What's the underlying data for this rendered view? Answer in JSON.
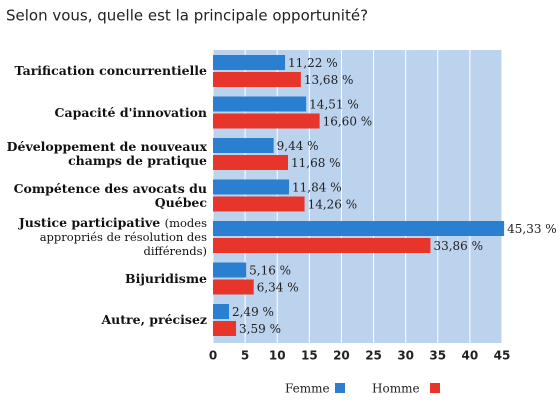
{
  "chart_data": {
    "type": "bar",
    "orientation": "horizontal",
    "title": "Selon vous, quelle est la principale opportunité?",
    "categories": [
      "Tarification concurrentielle",
      "Capacité d'innovation",
      "Développement de nouveaux champs de pratique",
      "Compétence des avocats du Québec",
      "Justice participative (modes appropriés de résolution des différends)",
      "Bijuridisme",
      "Autre, précisez"
    ],
    "series": [
      {
        "name": "Femme",
        "color": "#2a7fd0",
        "values": [
          11.22,
          14.51,
          9.44,
          11.84,
          45.33,
          5.16,
          2.49
        ],
        "value_labels": [
          "11,22 %",
          "14,51 %",
          "9,44 %",
          "11,84 %",
          "45,33 %",
          "5,16 %",
          "2,49 %"
        ]
      },
      {
        "name": "Homme",
        "color": "#e8352b",
        "values": [
          13.68,
          16.6,
          11.68,
          14.26,
          33.86,
          6.34,
          3.59
        ],
        "value_labels": [
          "13,68 %",
          "16,60 %",
          "11,68 %",
          "14,26 %",
          "33,86 %",
          "6,34 %",
          "3,59 %"
        ]
      }
    ],
    "xlim": [
      0,
      45
    ],
    "xticks": [
      0,
      5,
      10,
      15,
      20,
      25,
      30,
      35,
      40,
      45
    ],
    "grid": true
  }
}
